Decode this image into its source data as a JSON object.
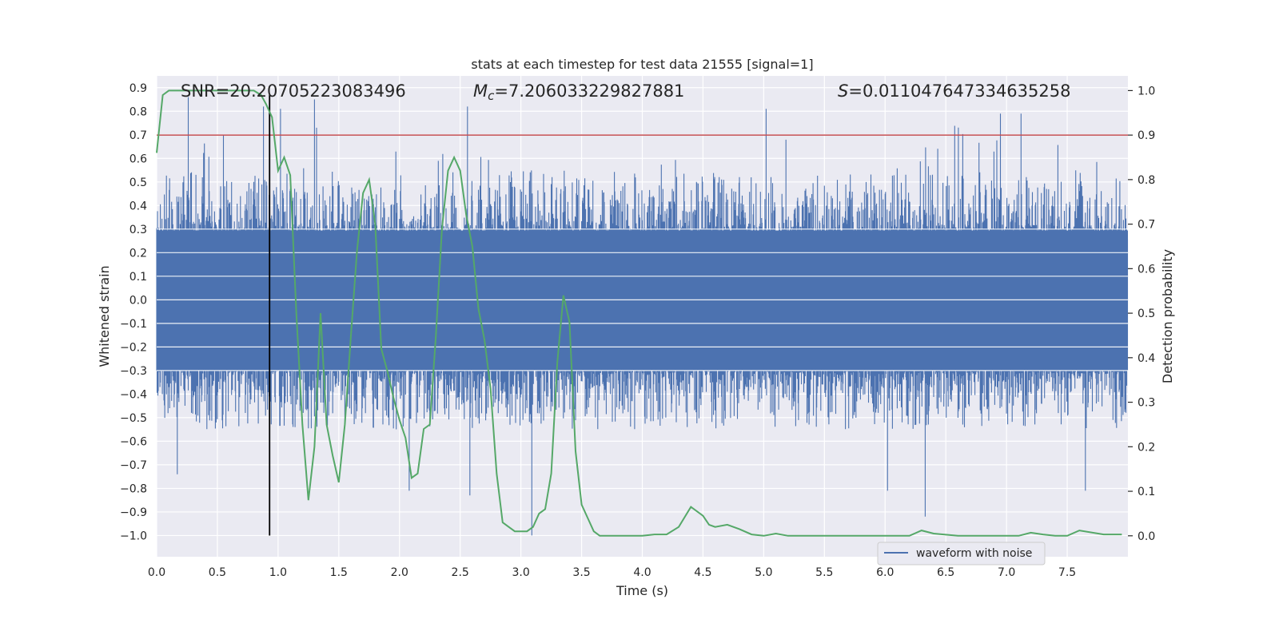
{
  "chart_data": {
    "type": "line",
    "title": "stats at each timestep for test data 21555 [signal=1]",
    "xlabel": "Time (s)",
    "ylabel_left": "Whitened strain",
    "ylabel_right": "Detection probability",
    "xlim": [
      0.0,
      8.0
    ],
    "ylim_left": [
      -1.09,
      0.95
    ],
    "ylim_right": [
      -0.047,
      1.033
    ],
    "grid": true,
    "x_ticks": [
      "0.0",
      "0.5",
      "1.0",
      "1.5",
      "2.0",
      "2.5",
      "3.0",
      "3.5",
      "4.0",
      "4.5",
      "5.0",
      "5.5",
      "6.0",
      "6.5",
      "7.0",
      "7.5"
    ],
    "y_ticks_left": [
      "0.9",
      "0.8",
      "0.7",
      "0.6",
      "0.5",
      "0.4",
      "0.3",
      "0.2",
      "0.1",
      "0.0",
      "−0.1",
      "−0.2",
      "−0.3",
      "−0.4",
      "−0.5",
      "−0.6",
      "−0.7",
      "−0.8",
      "−0.9",
      "−1.0"
    ],
    "y_ticks_right": [
      "1.0",
      "0.9",
      "0.8",
      "0.7",
      "0.6",
      "0.5",
      "0.4",
      "0.3",
      "0.2",
      "0.1",
      "0.0"
    ],
    "annotations": {
      "snr": "SNR=20.20705223083496",
      "mc_symbol": "M",
      "mc_sub": "c",
      "mc_value": "=7.206033229827881",
      "s_symbol": "S",
      "s_value": "=0.011047647334635258"
    },
    "threshold": {
      "probability": 0.9,
      "color": "#c44e52"
    },
    "marker_time": 0.93,
    "marker_range": [
      -1.0,
      0.87
    ],
    "series": [
      {
        "name": "waveform with noise",
        "axis": "left",
        "color": "#4c72b0",
        "description": "whitened strain noise, core amplitude about ±0.3 with spikes up to ±0.85",
        "envelope": {
          "core": 0.3,
          "typical_peak": 0.55,
          "max_peak": 0.86
        },
        "notable_peaks": [
          [
            0.26,
            0.86
          ],
          [
            0.55,
            0.7
          ],
          [
            0.88,
            0.82
          ],
          [
            1.02,
            0.81
          ],
          [
            1.3,
            0.85
          ],
          [
            2.56,
            0.82
          ],
          [
            5.02,
            0.81
          ],
          [
            6.95,
            0.79
          ],
          [
            7.12,
            0.79
          ]
        ],
        "notable_troughs": [
          [
            0.17,
            -0.74
          ],
          [
            2.08,
            -0.81
          ],
          [
            2.58,
            -0.83
          ],
          [
            3.09,
            -1.0
          ],
          [
            6.02,
            -0.81
          ],
          [
            6.33,
            -0.92
          ],
          [
            7.65,
            -0.81
          ]
        ]
      },
      {
        "name": "Detection probability",
        "axis": "right",
        "color": "#55a868",
        "x": [
          0.0,
          0.05,
          0.1,
          0.2,
          0.3,
          0.4,
          0.5,
          0.6,
          0.7,
          0.8,
          0.86,
          0.9,
          0.95,
          1.0,
          1.05,
          1.1,
          1.15,
          1.2,
          1.25,
          1.3,
          1.35,
          1.4,
          1.45,
          1.5,
          1.55,
          1.6,
          1.65,
          1.7,
          1.75,
          1.8,
          1.85,
          1.9,
          1.95,
          2.0,
          2.05,
          2.1,
          2.15,
          2.2,
          2.25,
          2.3,
          2.35,
          2.4,
          2.45,
          2.5,
          2.55,
          2.6,
          2.65,
          2.7,
          2.75,
          2.8,
          2.85,
          2.9,
          2.95,
          3.0,
          3.05,
          3.1,
          3.15,
          3.2,
          3.25,
          3.3,
          3.35,
          3.4,
          3.45,
          3.5,
          3.55,
          3.6,
          3.65,
          3.7,
          3.75,
          3.8,
          3.9,
          4.0,
          4.1,
          4.2,
          4.3,
          4.4,
          4.5,
          4.55,
          4.6,
          4.7,
          4.8,
          4.9,
          5.0,
          5.1,
          5.2,
          5.5,
          6.0,
          6.2,
          6.3,
          6.4,
          6.6,
          7.0,
          7.1,
          7.2,
          7.3,
          7.4,
          7.5,
          7.6,
          7.8,
          7.95
        ],
        "values": [
          0.86,
          0.99,
          1.0,
          1.0,
          1.0,
          1.0,
          1.0,
          1.0,
          1.0,
          1.0,
          0.99,
          0.97,
          0.94,
          0.82,
          0.85,
          0.81,
          0.5,
          0.25,
          0.08,
          0.2,
          0.5,
          0.25,
          0.18,
          0.12,
          0.25,
          0.45,
          0.64,
          0.77,
          0.8,
          0.7,
          0.42,
          0.37,
          0.31,
          0.26,
          0.22,
          0.13,
          0.14,
          0.24,
          0.25,
          0.45,
          0.69,
          0.82,
          0.85,
          0.82,
          0.72,
          0.65,
          0.51,
          0.44,
          0.33,
          0.14,
          0.03,
          0.02,
          0.01,
          0.01,
          0.01,
          0.02,
          0.05,
          0.06,
          0.14,
          0.39,
          0.54,
          0.48,
          0.19,
          0.07,
          0.04,
          0.01,
          0.0,
          0.0,
          0.0,
          0.0,
          0.0,
          0.0,
          0.003,
          0.003,
          0.02,
          0.065,
          0.045,
          0.025,
          0.02,
          0.025,
          0.015,
          0.003,
          0.0,
          0.005,
          0.0,
          0.0,
          0.0,
          0.0,
          0.012,
          0.005,
          0.0,
          0.0,
          0.0,
          0.007,
          0.003,
          0.0,
          0.0,
          0.012,
          0.003,
          0.003
        ]
      }
    ],
    "legend": {
      "location": "lower-right",
      "entries": [
        "waveform with noise"
      ]
    }
  }
}
